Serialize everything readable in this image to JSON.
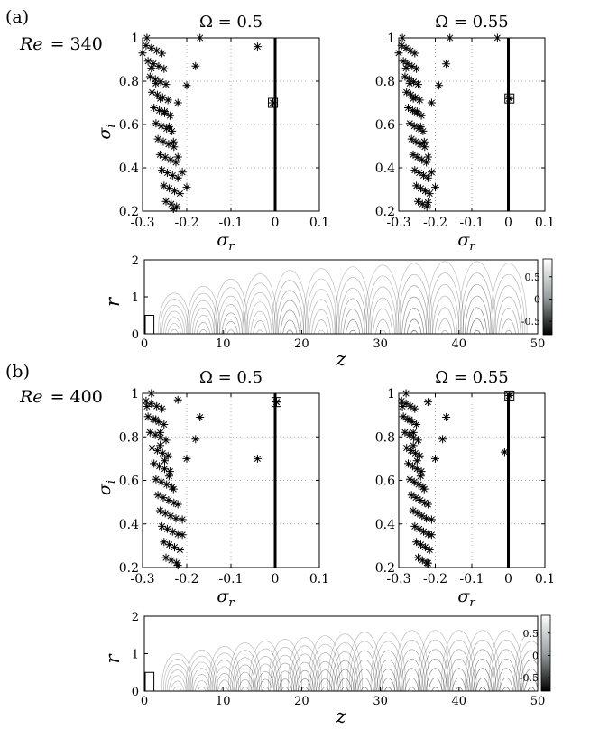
{
  "panels": [
    {
      "label": "(a)",
      "re_label": "Re",
      "re_value": "= 340",
      "spectra": [
        {
          "title": "Ω = 0.5",
          "xlabel": "σ",
          "xlabel_sub": "r",
          "ylabel": "σ",
          "ylabel_sub": "i",
          "xlim": [
            -0.3,
            0.1
          ],
          "ylim": [
            0.2,
            1.0
          ],
          "xticks": [
            "-0.3",
            "-0.2",
            "-0.1",
            "0",
            "0.1"
          ],
          "yticks": [
            "0.2",
            "0.4",
            "0.6",
            "0.8",
            "1"
          ],
          "marked_point": [
            -0.005,
            0.7
          ],
          "branch_scatter": [
            {
              "x": -0.17,
              "y": 1.0
            },
            {
              "x": -0.18,
              "y": 0.87
            },
            {
              "x": -0.2,
              "y": 0.78
            },
            {
              "x": -0.22,
              "y": 0.7
            },
            {
              "x": -0.04,
              "y": 0.96
            }
          ]
        },
        {
          "title": "Ω = 0.55",
          "xlabel": "σ",
          "xlabel_sub": "r",
          "ylabel": "",
          "ylabel_sub": "",
          "xlim": [
            -0.3,
            0.1
          ],
          "ylim": [
            0.2,
            1.0
          ],
          "xticks": [
            "-0.3",
            "-0.2",
            "-0.1",
            "0",
            "0.1"
          ],
          "yticks": [
            "0.2",
            "0.4",
            "0.6",
            "0.8",
            "1"
          ],
          "marked_point": [
            0.003,
            0.72
          ],
          "branch_scatter": [
            {
              "x": -0.16,
              "y": 1.0
            },
            {
              "x": -0.17,
              "y": 0.88
            },
            {
              "x": -0.19,
              "y": 0.78
            },
            {
              "x": -0.21,
              "y": 0.7
            },
            {
              "x": -0.03,
              "y": 1.0
            }
          ]
        }
      ],
      "mode": {
        "xlabel": "z",
        "ylabel": "r",
        "xlim": [
          0,
          50
        ],
        "ylim": [
          0,
          2
        ],
        "xticks": [
          "0",
          "10",
          "20",
          "30",
          "40",
          "50"
        ],
        "yticks": [
          "0",
          "1",
          "2"
        ],
        "cells": [
          {
            "z": 3.8,
            "a": 1.0,
            "shade": 0.1
          },
          {
            "z": 7.5,
            "a": 1.2,
            "shade": 0.2
          },
          {
            "z": 11,
            "a": 1.4,
            "shade": 0.35
          },
          {
            "z": 14.7,
            "a": 1.55,
            "shade": 0.15
          },
          {
            "z": 18.5,
            "a": 1.65,
            "shade": 0.6
          },
          {
            "z": 22.5,
            "a": 1.7,
            "shade": 0.15
          },
          {
            "z": 26.5,
            "a": 1.75,
            "shade": 0.55
          },
          {
            "z": 30.3,
            "a": 1.8,
            "shade": 0.2
          },
          {
            "z": 34.3,
            "a": 1.85,
            "shade": 0.75
          },
          {
            "z": 38.2,
            "a": 1.9,
            "shade": 0.25
          },
          {
            "z": 42.3,
            "a": 1.9,
            "shade": 0.85
          },
          {
            "z": 46.3,
            "a": 1.85,
            "shade": 0.3
          }
        ],
        "colorbar_ticks": [
          "0.5",
          "0",
          "-0.5"
        ]
      }
    },
    {
      "label": "(b)",
      "re_label": "Re",
      "re_value": "= 400",
      "spectra": [
        {
          "title": "Ω = 0.5",
          "xlabel": "σ",
          "xlabel_sub": "r",
          "ylabel": "σ",
          "ylabel_sub": "i",
          "xlim": [
            -0.3,
            0.1
          ],
          "ylim": [
            0.2,
            1.0
          ],
          "xticks": [
            "-0.3",
            "-0.2",
            "-0.1",
            "0",
            "0.1"
          ],
          "yticks": [
            "0.2",
            "0.4",
            "0.6",
            "0.8",
            "1"
          ],
          "marked_point": [
            0.003,
            0.96
          ],
          "branch_scatter": [
            {
              "x": -0.22,
              "y": 0.97
            },
            {
              "x": -0.17,
              "y": 0.89
            },
            {
              "x": -0.18,
              "y": 0.79
            },
            {
              "x": -0.2,
              "y": 0.7
            },
            {
              "x": -0.04,
              "y": 0.7
            },
            {
              "x": -0.21,
              "y": 0.62
            }
          ]
        },
        {
          "title": "Ω = 0.55",
          "xlabel": "σ",
          "xlabel_sub": "r",
          "ylabel": "",
          "ylabel_sub": "",
          "xlim": [
            -0.3,
            0.1
          ],
          "ylim": [
            0.2,
            1.0
          ],
          "xticks": [
            "-0.3",
            "-0.2",
            "-0.1",
            "0",
            "0.1"
          ],
          "yticks": [
            "0.2",
            "0.4",
            "0.6",
            "0.8",
            "1"
          ],
          "marked_point": [
            0.003,
            0.99
          ],
          "branch_scatter": [
            {
              "x": -0.22,
              "y": 0.96
            },
            {
              "x": -0.17,
              "y": 0.89
            },
            {
              "x": -0.18,
              "y": 0.79
            },
            {
              "x": -0.2,
              "y": 0.7
            },
            {
              "x": -0.01,
              "y": 0.73
            },
            {
              "x": -0.21,
              "y": 0.62
            }
          ]
        }
      ],
      "mode": {
        "xlabel": "z",
        "ylabel": "r",
        "xlim": [
          0,
          50
        ],
        "ylim": [
          0,
          2
        ],
        "xticks": [
          "0",
          "10",
          "20",
          "30",
          "40",
          "50"
        ],
        "yticks": [
          "0",
          "1",
          "2"
        ],
        "cells": [
          {
            "z": 4.2,
            "a": 0.9,
            "shade": 0.05
          },
          {
            "z": 7.3,
            "a": 1.0,
            "shade": 0.15
          },
          {
            "z": 10.2,
            "a": 1.1,
            "shade": 0.2
          },
          {
            "z": 12.8,
            "a": 1.2,
            "shade": 0.3
          },
          {
            "z": 15.4,
            "a": 1.25,
            "shade": 0.4
          },
          {
            "z": 17.9,
            "a": 1.3,
            "shade": 0.45
          },
          {
            "z": 20.4,
            "a": 1.35,
            "shade": 0.55
          },
          {
            "z": 23.0,
            "a": 1.4,
            "shade": 0.4
          },
          {
            "z": 25.5,
            "a": 1.45,
            "shade": 0.6
          },
          {
            "z": 28.0,
            "a": 1.5,
            "shade": 0.5
          },
          {
            "z": 31.0,
            "a": 1.5,
            "shade": 0.7
          },
          {
            "z": 34.0,
            "a": 1.55,
            "shade": 0.55
          },
          {
            "z": 37.0,
            "a": 1.55,
            "shade": 0.75
          },
          {
            "z": 40.0,
            "a": 1.55,
            "shade": 0.6
          },
          {
            "z": 43.0,
            "a": 1.55,
            "shade": 0.85
          },
          {
            "z": 46.0,
            "a": 1.55,
            "shade": 0.6
          },
          {
            "z": 49.2,
            "a": 1.5,
            "shade": 0.8
          }
        ],
        "colorbar_ticks": [
          "0.5",
          "0",
          "-0.5"
        ]
      }
    }
  ],
  "chart_data": [
    {
      "type": "scatter",
      "title": "Ω = 0.5",
      "xlabel": "σ_r",
      "ylabel": "σ_i",
      "xlim": [
        -0.3,
        0.1
      ],
      "ylim": [
        0.2,
        1.0
      ],
      "grid": true,
      "series": [
        {
          "values": [
            [
              -0.29,
              1.0
            ],
            [
              -0.3,
              0.93
            ],
            [
              -0.28,
              0.86
            ],
            [
              -0.27,
              0.79
            ],
            [
              -0.26,
              0.72
            ],
            [
              -0.25,
              0.66
            ],
            [
              -0.24,
              0.59
            ],
            [
              -0.23,
              0.52
            ],
            [
              -0.22,
              0.45
            ],
            [
              -0.21,
              0.38
            ],
            [
              -0.2,
              0.31
            ],
            [
              -0.23,
              0.21
            ],
            [
              -0.17,
              1.0
            ],
            [
              -0.18,
              0.87
            ],
            [
              -0.2,
              0.78
            ],
            [
              -0.22,
              0.7
            ],
            [
              -0.04,
              0.96
            ],
            [
              -0.005,
              0.7
            ]
          ]
        }
      ]
    },
    {
      "type": "scatter",
      "title": "Ω = 0.55",
      "xlabel": "σ_r",
      "ylabel": "",
      "xlim": [
        -0.3,
        0.1
      ],
      "ylim": [
        0.2,
        1.0
      ],
      "grid": true,
      "series": [
        {
          "values": [
            [
              -0.29,
              1.0
            ],
            [
              -0.3,
              0.93
            ],
            [
              -0.28,
              0.86
            ],
            [
              -0.27,
              0.79
            ],
            [
              -0.26,
              0.72
            ],
            [
              -0.25,
              0.66
            ],
            [
              -0.24,
              0.59
            ],
            [
              -0.23,
              0.52
            ],
            [
              -0.22,
              0.45
            ],
            [
              -0.21,
              0.38
            ],
            [
              -0.2,
              0.31
            ],
            [
              -0.22,
              0.24
            ],
            [
              -0.16,
              1.0
            ],
            [
              -0.17,
              0.88
            ],
            [
              -0.19,
              0.78
            ],
            [
              -0.21,
              0.7
            ],
            [
              -0.03,
              1.0
            ],
            [
              0.003,
              0.72
            ]
          ]
        }
      ]
    },
    {
      "type": "heatmap",
      "xlabel": "z",
      "ylabel": "r",
      "xlim": [
        0,
        50
      ],
      "ylim": [
        0,
        2
      ],
      "colorbar": {
        "min": -0.8,
        "max": 0.9,
        "ticks": [
          0.5,
          0,
          -0.5
        ]
      }
    },
    {
      "type": "scatter",
      "title": "Ω = 0.5",
      "xlabel": "σ_r",
      "ylabel": "σ_i",
      "xlim": [
        -0.3,
        0.1
      ],
      "ylim": [
        0.2,
        1.0
      ],
      "grid": true,
      "series": [
        {
          "values": [
            [
              -0.28,
              1.0
            ],
            [
              -0.29,
              0.94
            ],
            [
              -0.27,
              0.88
            ],
            [
              -0.26,
              0.82
            ],
            [
              -0.26,
              0.76
            ],
            [
              -0.25,
              0.69
            ],
            [
              -0.24,
              0.62
            ],
            [
              -0.23,
              0.56
            ],
            [
              -0.22,
              0.49
            ],
            [
              -0.21,
              0.42
            ],
            [
              -0.21,
              0.35
            ],
            [
              -0.22,
              0.21
            ],
            [
              -0.22,
              0.97
            ],
            [
              -0.17,
              0.89
            ],
            [
              -0.18,
              0.79
            ],
            [
              -0.2,
              0.7
            ],
            [
              -0.04,
              0.7
            ],
            [
              0.003,
              0.96
            ]
          ]
        }
      ]
    },
    {
      "type": "scatter",
      "title": "Ω = 0.55",
      "xlabel": "σ_r",
      "ylabel": "",
      "xlim": [
        -0.3,
        0.1
      ],
      "ylim": [
        0.2,
        1.0
      ],
      "grid": true,
      "series": [
        {
          "values": [
            [
              -0.28,
              1.0
            ],
            [
              -0.29,
              0.94
            ],
            [
              -0.27,
              0.88
            ],
            [
              -0.26,
              0.82
            ],
            [
              -0.26,
              0.76
            ],
            [
              -0.25,
              0.69
            ],
            [
              -0.24,
              0.62
            ],
            [
              -0.23,
              0.56
            ],
            [
              -0.22,
              0.49
            ],
            [
              -0.21,
              0.42
            ],
            [
              -0.21,
              0.35
            ],
            [
              -0.22,
              0.22
            ],
            [
              -0.22,
              0.96
            ],
            [
              -0.17,
              0.89
            ],
            [
              -0.18,
              0.79
            ],
            [
              -0.2,
              0.7
            ],
            [
              -0.01,
              0.73
            ],
            [
              0.003,
              0.99
            ]
          ]
        }
      ]
    },
    {
      "type": "heatmap",
      "xlabel": "z",
      "ylabel": "r",
      "xlim": [
        0,
        50
      ],
      "ylim": [
        0,
        2
      ],
      "colorbar": {
        "min": -0.8,
        "max": 0.9,
        "ticks": [
          0.5,
          0,
          -0.5
        ]
      }
    }
  ]
}
